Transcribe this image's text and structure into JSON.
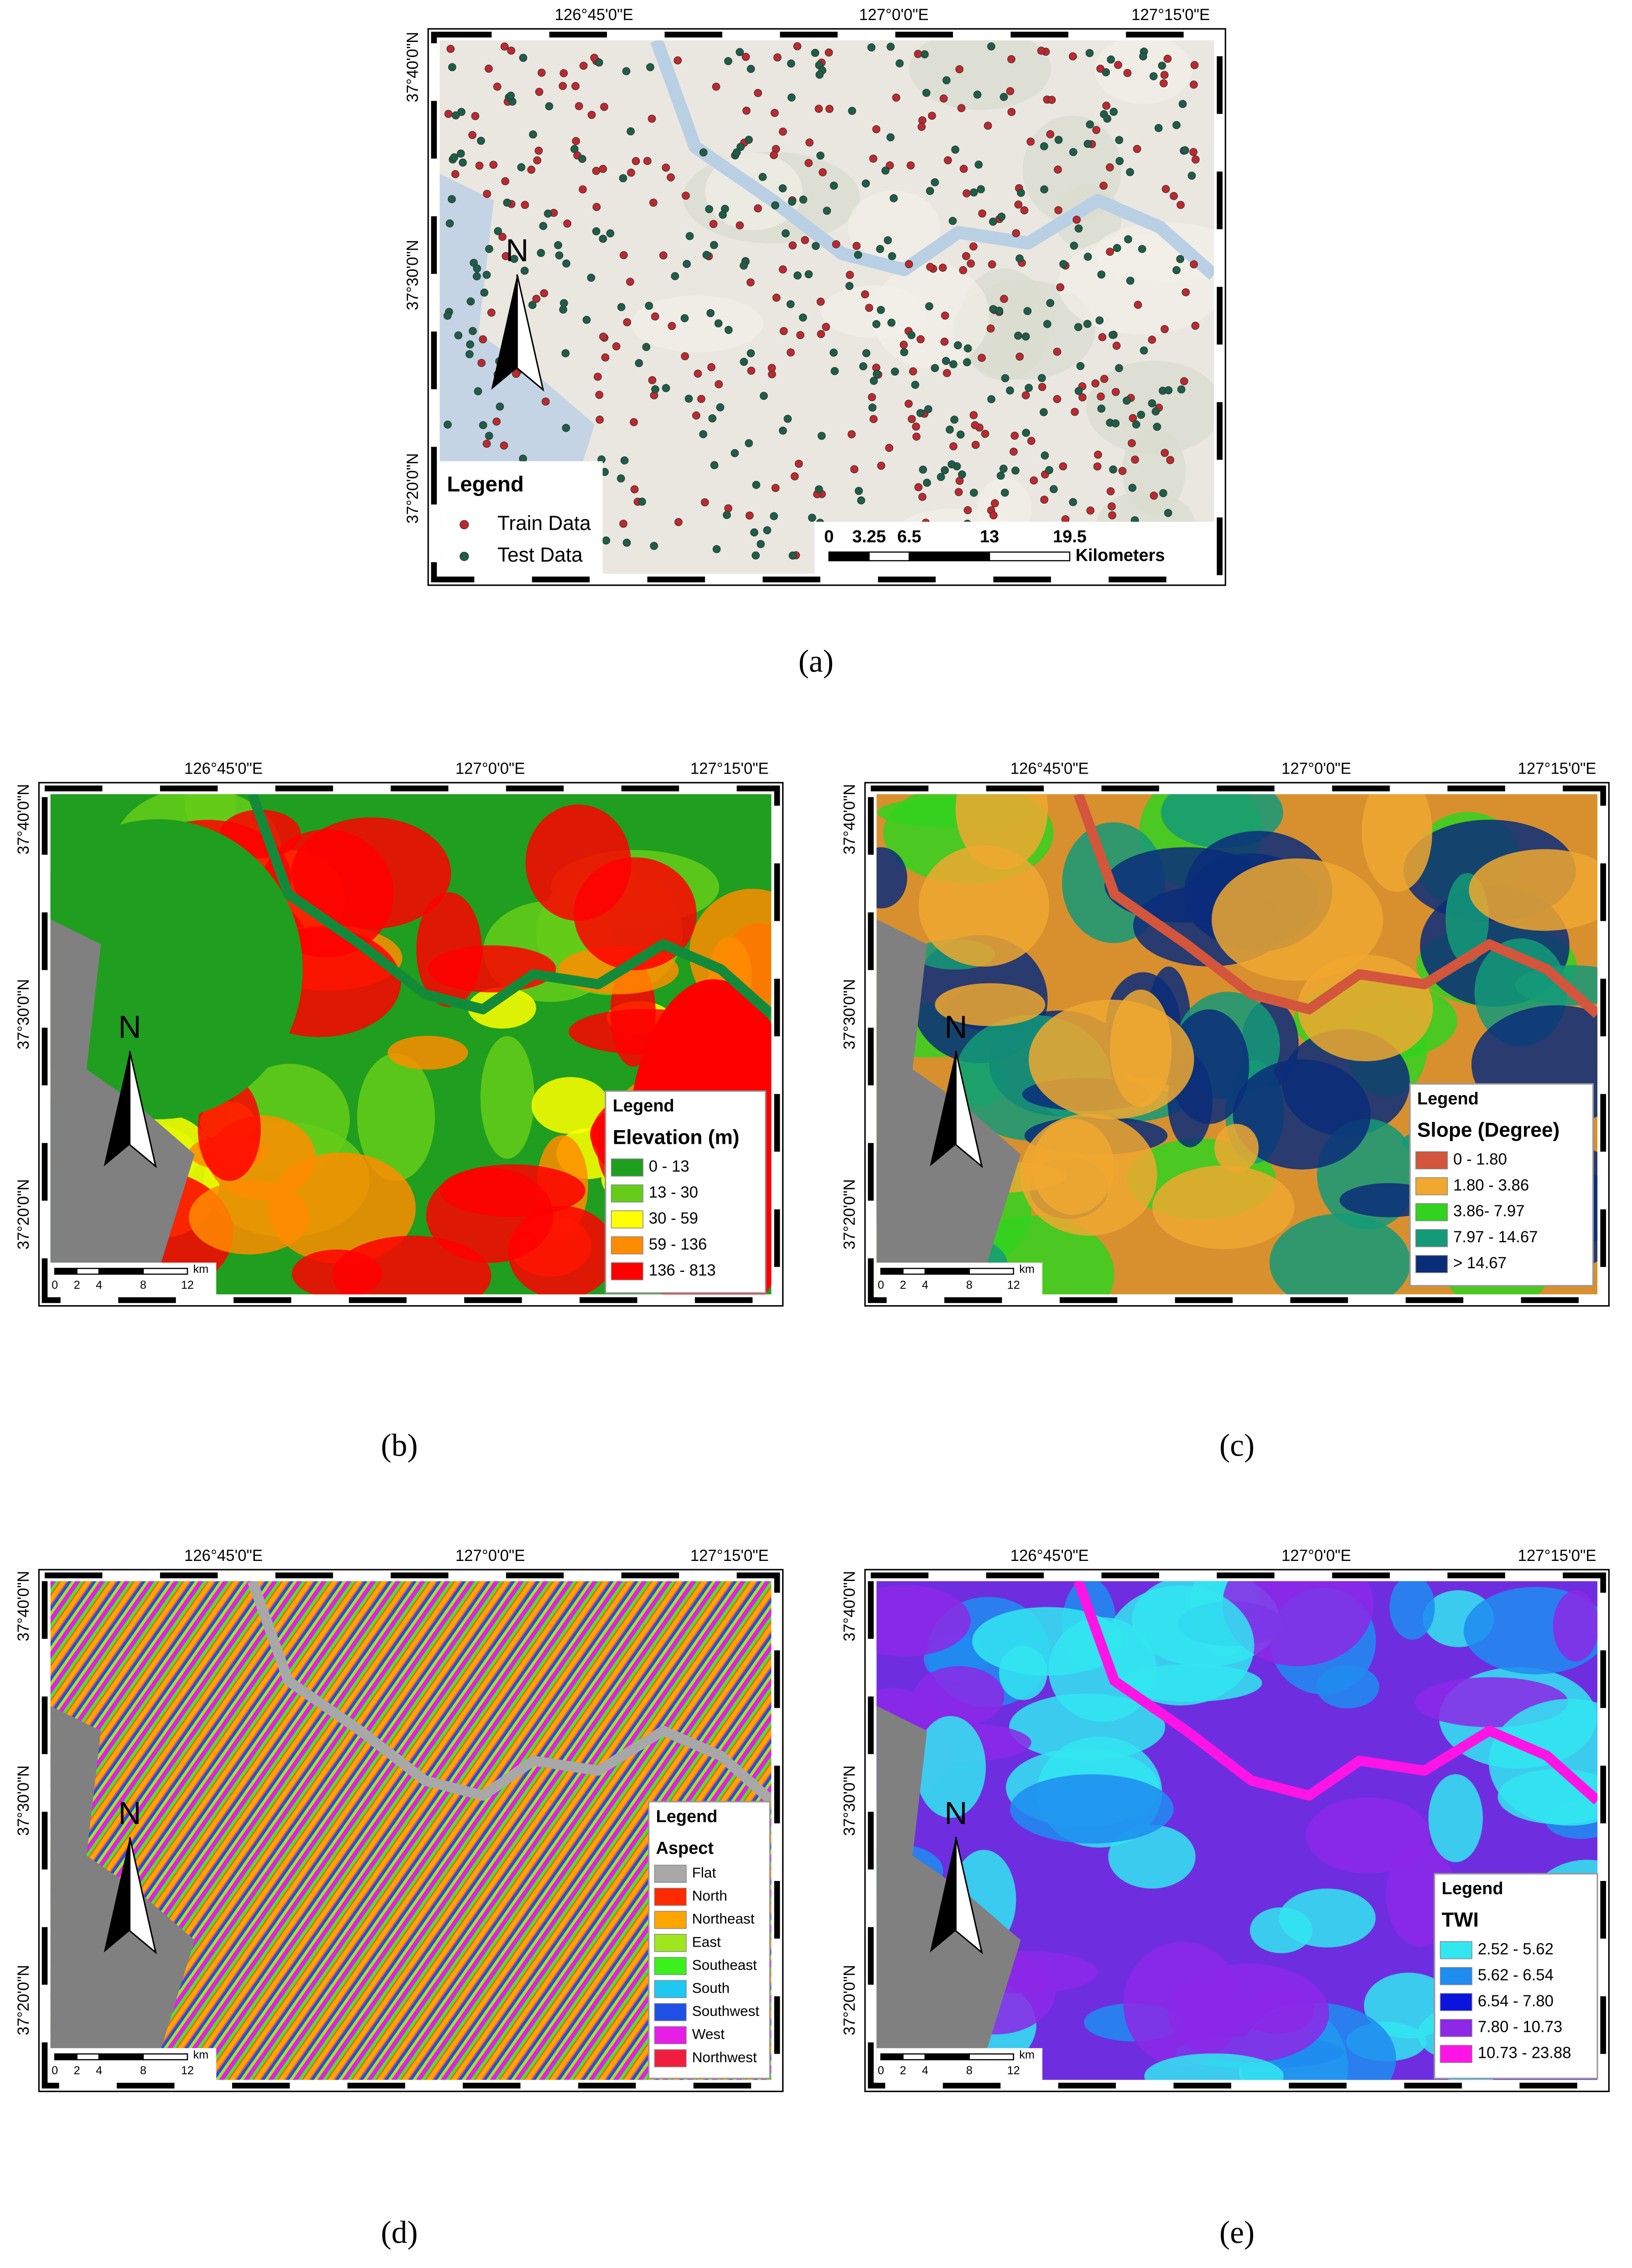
{
  "panels": [
    {
      "label": "(a)",
      "x_labels": [
        "126°45'0\"E",
        "127°0'0\"E",
        "127°15'0\"E"
      ],
      "y_labels": [
        "37°40'0\"N",
        "37°30'0\"N",
        "37°20'0\"N"
      ],
      "north": "N",
      "legend": {
        "title": "Legend",
        "items": [
          "Train Data",
          "Test Data"
        ],
        "colors": [
          "#c0282d",
          "#1d5e48"
        ]
      },
      "scale": {
        "ticks": [
          "0",
          "3.25",
          "6.5",
          "13",
          "19.5"
        ],
        "unit": "Kilometers"
      }
    },
    {
      "label": "(b)",
      "x_labels": [
        "126°45'0\"E",
        "127°0'0\"E",
        "127°15'0\"E"
      ],
      "y_labels": [
        "37°40'0\"N",
        "37°30'0\"N",
        "37°20'0\"N"
      ],
      "north": "N",
      "legend": {
        "title": "Legend",
        "subtitle": "Elevation (m)",
        "items": [
          "0 - 13",
          "13 - 30",
          "30 - 59",
          "59 - 136",
          "136 - 813"
        ],
        "colors": [
          "#1f9e1f",
          "#66cc1a",
          "#ffff00",
          "#ff8c00",
          "#ff0000"
        ]
      },
      "scale": {
        "ticks": [
          "0",
          "2",
          "4",
          "8",
          "12"
        ],
        "unit": "km"
      }
    },
    {
      "label": "(c)",
      "x_labels": [
        "126°45'0\"E",
        "127°0'0\"E",
        "127°15'0\"E"
      ],
      "y_labels": [
        "37°40'0\"N",
        "37°30'0\"N",
        "37°20'0\"N"
      ],
      "north": "N",
      "legend": {
        "title": "Legend",
        "subtitle": "Slope (Degree)",
        "items": [
          "0 - 1.80",
          "1.80 - 3.86",
          "3.86- 7.97",
          "7.97 - 14.67",
          "> 14.67"
        ],
        "colors": [
          "#d2553c",
          "#f0a830",
          "#32d21e",
          "#149a78",
          "#0a2d7a"
        ]
      },
      "scale": {
        "ticks": [
          "0",
          "2",
          "4",
          "8",
          "12"
        ],
        "unit": "km"
      }
    },
    {
      "label": "(d)",
      "x_labels": [
        "126°45'0\"E",
        "127°0'0\"E",
        "127°15'0\"E"
      ],
      "y_labels": [
        "37°40'0\"N",
        "37°30'0\"N",
        "37°20'0\"N"
      ],
      "north": "N",
      "legend": {
        "title": "Legend",
        "subtitle": "Aspect",
        "items": [
          "Flat",
          "North",
          "Northeast",
          "East",
          "Southeast",
          "South",
          "Southwest",
          "West",
          "Northwest"
        ],
        "colors": [
          "#a8a8a8",
          "#ff2a00",
          "#ffa500",
          "#a0e61e",
          "#3cf01e",
          "#1ec8f0",
          "#1e50e6",
          "#e61ee6",
          "#f01e3c"
        ]
      },
      "scale": {
        "ticks": [
          "0",
          "2",
          "4",
          "8",
          "12"
        ],
        "unit": "km"
      }
    },
    {
      "label": "(e)",
      "x_labels": [
        "126°45'0\"E",
        "127°0'0\"E",
        "127°15'0\"E"
      ],
      "y_labels": [
        "37°40'0\"N",
        "37°30'0\"N",
        "37°20'0\"N"
      ],
      "north": "N",
      "legend": {
        "title": "Legend",
        "subtitle": "TWI",
        "items": [
          "2.52 - 5.62",
          "5.62 - 6.54",
          "6.54 - 7.80",
          "7.80 - 10.73",
          "10.73 - 23.88"
        ],
        "colors": [
          "#32e6f0",
          "#1e8cf0",
          "#0a14dc",
          "#8c28e6",
          "#ff14e6"
        ]
      },
      "scale": {
        "ticks": [
          "0",
          "2",
          "4",
          "8",
          "12"
        ],
        "unit": "km"
      }
    }
  ]
}
